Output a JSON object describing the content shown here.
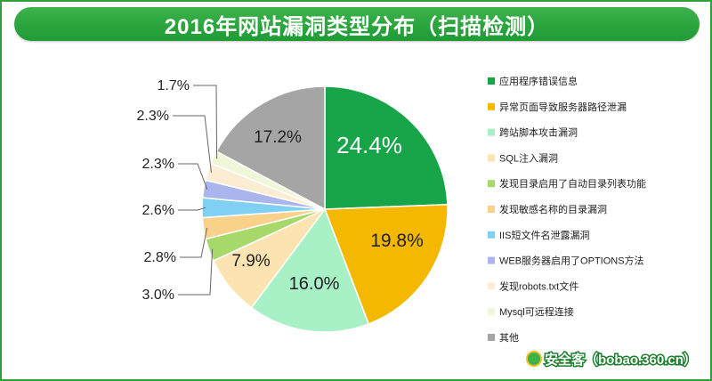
{
  "chart_data": {
    "type": "pie",
    "title": "2016年网站漏洞类型分布（扫描检测）",
    "slices": [
      {
        "label": "应用程序错误信息",
        "value": 24.4,
        "color": "#18a54a",
        "display": "24.4%"
      },
      {
        "label": "异常页面导致服务器路径泄漏",
        "value": 19.8,
        "color": "#f5b800",
        "display": "19.8%"
      },
      {
        "label": "跨站脚本攻击漏洞",
        "value": 16.0,
        "color": "#a8f0c6",
        "display": "16.0%"
      },
      {
        "label": "SQL注入漏洞",
        "value": 7.9,
        "color": "#fbe3b2",
        "display": "7.9%"
      },
      {
        "label": "发现目录启用了自动目录列表功能",
        "value": 3.0,
        "color": "#a6d86a",
        "display": "3.0%"
      },
      {
        "label": "发现敏感名称的目录漏洞",
        "value": 2.8,
        "color": "#f8d18a",
        "display": "2.8%"
      },
      {
        "label": "IIS短文件名泄露漏洞",
        "value": 2.6,
        "color": "#7fd0f3",
        "display": "2.6%"
      },
      {
        "label": "WEB服务器启用了OPTIONS方法",
        "value": 2.3,
        "color": "#a9b5ec",
        "display": "2.3%"
      },
      {
        "label": "发现robots.txt文件",
        "value": 2.3,
        "color": "#fbedd3",
        "display": "2.3%"
      },
      {
        "label": "Mysql可远程连接",
        "value": 1.7,
        "color": "#eef8d8",
        "display": "1.7%"
      },
      {
        "label": "其他",
        "value": 17.2,
        "color": "#a5a5a5",
        "display": "17.2%"
      }
    ],
    "legend_position": "right"
  },
  "watermark": "安全客（bobao.360.cn）"
}
